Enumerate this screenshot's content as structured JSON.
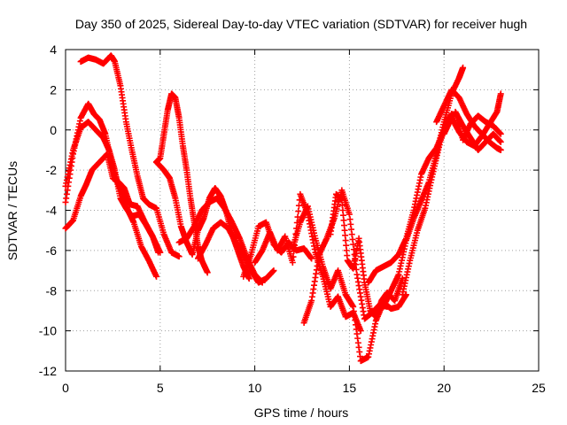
{
  "chart_data": {
    "type": "scatter",
    "title": "Day 350 of 2025, Sidereal Day-to-day VTEC variation (SDTVAR) for receiver hugh",
    "xlabel": "GPS time / hours",
    "ylabel": "SDTVAR / TECUs",
    "xlim": [
      0,
      25
    ],
    "ylim": [
      -12,
      4
    ],
    "xticks": [
      0,
      5,
      10,
      15,
      20,
      25
    ],
    "yticks": [
      -12,
      -10,
      -8,
      -6,
      -4,
      -2,
      0,
      2,
      4
    ],
    "xtick_labels": [
      "0",
      "5",
      "10",
      "15",
      "20",
      "25"
    ],
    "ytick_labels": [
      "-12",
      "-10",
      "-8",
      "-6",
      "-4",
      "-2",
      "0",
      "2",
      "4"
    ],
    "grid": true,
    "marker": "+",
    "color": "#ff0000",
    "series": [
      {
        "x": [
          0.0,
          0.4,
          0.8,
          1.2,
          1.5,
          1.8,
          2.1,
          2.4,
          2.7,
          3.0,
          3.3,
          3.6,
          4.0,
          4.4,
          4.8
        ],
        "y": [
          -3.6,
          -1.2,
          0.6,
          1.3,
          0.8,
          0.5,
          -0.2,
          -1.5,
          -2.5,
          -3.2,
          -4.0,
          -4.6,
          -5.8,
          -6.5,
          -7.3
        ]
      },
      {
        "x": [
          0.0,
          0.4,
          0.8,
          1.2,
          1.6,
          2.0,
          2.3,
          2.6,
          2.9,
          3.2,
          3.5,
          3.9,
          4.3,
          4.6,
          5.0
        ],
        "y": [
          -2.8,
          -1.0,
          0.1,
          0.4,
          0.0,
          -0.4,
          -1.0,
          -2.0,
          -3.4,
          -3.9,
          -4.3,
          -4.2,
          -4.8,
          -5.3,
          -6.1
        ]
      },
      {
        "x": [
          0.0,
          0.4,
          0.8,
          1.1,
          1.4,
          1.8,
          2.2,
          2.5,
          2.8,
          3.1,
          3.4,
          3.8,
          4.2,
          4.6,
          4.9
        ],
        "y": [
          -4.9,
          -4.5,
          -3.3,
          -2.7,
          -2.0,
          -1.6,
          -1.2,
          -2.4,
          -2.6,
          -2.9,
          -3.7,
          -3.8,
          -4.6,
          -5.3,
          -6.1
        ]
      },
      {
        "x": [
          0.8,
          1.2,
          1.6,
          2.0,
          2.4,
          2.6,
          2.9,
          3.2,
          3.5,
          3.8,
          4.1,
          4.4,
          4.8,
          5.2,
          5.6,
          6.0
        ],
        "y": [
          3.4,
          3.6,
          3.5,
          3.3,
          3.7,
          3.4,
          2.2,
          0.4,
          -1.0,
          -2.3,
          -3.4,
          -3.7,
          -3.9,
          -5.2,
          -6.1,
          -6.3
        ]
      },
      {
        "x": [
          4.8,
          5.0,
          5.2,
          5.4,
          5.6,
          5.8,
          6.0,
          6.2,
          6.4,
          6.6,
          6.8,
          7.0,
          7.2,
          7.5
        ],
        "y": [
          -1.6,
          -1.4,
          -0.2,
          1.0,
          1.8,
          1.6,
          0.6,
          -0.8,
          -2.0,
          -3.4,
          -4.6,
          -5.8,
          -6.5,
          -7.1
        ]
      },
      {
        "x": [
          4.8,
          5.2,
          5.5,
          5.8,
          6.1,
          6.4,
          6.7,
          7.0,
          7.3,
          7.6,
          7.9,
          8.2,
          8.5,
          8.8,
          9.1,
          9.4,
          9.7
        ],
        "y": [
          -1.6,
          -2.0,
          -2.4,
          -3.4,
          -4.8,
          -5.6,
          -6.2,
          -5.0,
          -4.4,
          -3.4,
          -2.9,
          -3.3,
          -4.1,
          -5.2,
          -6.0,
          -6.8,
          -7.4
        ]
      },
      {
        "x": [
          6.0,
          6.4,
          6.8,
          7.2,
          7.6,
          8.0,
          8.4,
          8.8,
          9.2,
          9.6,
          10.0,
          10.4
        ],
        "y": [
          -5.6,
          -5.4,
          -4.8,
          -4.0,
          -3.6,
          -3.4,
          -3.9,
          -4.6,
          -5.4,
          -6.4,
          -7.2,
          -7.6
        ]
      },
      {
        "x": [
          7.0,
          7.4,
          7.8,
          8.2,
          8.6,
          9.0,
          9.4,
          9.8,
          10.2,
          10.6,
          11.0
        ],
        "y": [
          -6.4,
          -5.7,
          -4.9,
          -4.6,
          -4.9,
          -5.6,
          -6.2,
          -7.0,
          -7.6,
          -7.4,
          -7.0
        ]
      },
      {
        "x": [
          9.4,
          9.8,
          10.2,
          10.6,
          11.0,
          11.4,
          11.8,
          12.2,
          12.6,
          13.0
        ],
        "y": [
          -7.3,
          -6.2,
          -4.8,
          -4.6,
          -5.7,
          -6.1,
          -5.6,
          -6.0,
          -5.9,
          -6.4
        ]
      },
      {
        "x": [
          10.0,
          10.4,
          10.8,
          11.2,
          11.6,
          12.0,
          12.4,
          12.8,
          13.2,
          13.6,
          14.0,
          14.4,
          14.8,
          15.2,
          15.6
        ],
        "y": [
          -6.6,
          -6.0,
          -5.1,
          -6.0,
          -5.3,
          -6.6,
          -3.2,
          -4.2,
          -6.1,
          -7.3,
          -8.8,
          -8.3,
          -9.3,
          -9.1,
          -10.0
        ]
      },
      {
        "x": [
          12.0,
          12.4,
          12.8,
          13.2,
          13.6,
          14.0,
          14.4,
          14.8,
          15.2,
          15.6,
          16.0,
          16.4,
          16.8,
          17.2,
          17.6,
          18.0
        ],
        "y": [
          -5.9,
          -4.6,
          -3.8,
          -5.4,
          -6.8,
          -7.9,
          -7.0,
          -8.2,
          -8.8,
          -11.5,
          -11.3,
          -9.5,
          -8.6,
          -8.9,
          -8.8,
          -8.2
        ]
      },
      {
        "x": [
          12.6,
          13.0,
          13.4,
          13.8,
          14.2,
          14.6,
          15.0,
          15.4,
          15.8,
          16.2,
          16.6,
          17.0
        ],
        "y": [
          -9.6,
          -8.5,
          -6.2,
          -5.4,
          -4.4,
          -3.0,
          -4.2,
          -7.2,
          -9.4,
          -9.1,
          -8.7,
          -8.8
        ]
      },
      {
        "x": [
          14.0,
          14.3,
          14.6,
          14.9,
          15.2,
          15.5,
          15.8,
          16.1,
          16.4,
          16.7,
          17.0,
          17.4,
          17.8
        ],
        "y": [
          -5.2,
          -3.2,
          -3.5,
          -6.5,
          -6.9,
          -5.4,
          -7.6,
          -9.0,
          -9.3,
          -8.5,
          -8.1,
          -8.5,
          -7.4
        ]
      },
      {
        "x": [
          16.0,
          16.4,
          16.8,
          17.2,
          17.6,
          18.0,
          18.4,
          18.8,
          19.2,
          19.6,
          20.0,
          20.4
        ],
        "y": [
          -7.6,
          -7.0,
          -6.8,
          -6.6,
          -6.2,
          -5.4,
          -4.0,
          -2.2,
          -1.4,
          -0.9,
          0.0,
          0.8
        ]
      },
      {
        "x": [
          16.8,
          17.2,
          17.6,
          18.0,
          18.4,
          18.8,
          19.2,
          19.6,
          20.0,
          20.4,
          20.8,
          21.0
        ],
        "y": [
          -8.8,
          -8.0,
          -7.2,
          -5.5,
          -4.4,
          -3.5,
          -2.6,
          -1.2,
          0.4,
          1.8,
          2.6,
          3.1
        ]
      },
      {
        "x": [
          17.8,
          18.2,
          18.6,
          19.0,
          19.4,
          19.8,
          20.2,
          20.6,
          21.0,
          21.4,
          21.8,
          22.2,
          22.6,
          23.0
        ],
        "y": [
          -8.2,
          -6.5,
          -5.0,
          -3.9,
          -2.2,
          -0.6,
          0.6,
          0.8,
          -0.5,
          0.3,
          0.7,
          0.4,
          0.2,
          -0.2
        ]
      },
      {
        "x": [
          19.6,
          20.0,
          20.4,
          20.8,
          21.2,
          21.6,
          22.0,
          22.4,
          22.8,
          23.0
        ],
        "y": [
          0.4,
          1.2,
          2.0,
          1.6,
          0.8,
          0.2,
          -0.2,
          -0.6,
          -0.9,
          -1.0
        ]
      },
      {
        "x": [
          20.0,
          20.4,
          20.8,
          21.2,
          21.6,
          22.0,
          22.4,
          22.8,
          23.0
        ],
        "y": [
          -0.2,
          0.6,
          -0.1,
          -0.6,
          -0.8,
          -0.3,
          0.3,
          0.9,
          1.8
        ]
      },
      {
        "x": [
          20.6,
          21.0,
          21.4,
          21.8,
          22.2,
          22.6,
          23.0
        ],
        "y": [
          0.9,
          0.2,
          -0.4,
          -1.0,
          -0.6,
          -0.2,
          -0.6
        ]
      }
    ]
  }
}
